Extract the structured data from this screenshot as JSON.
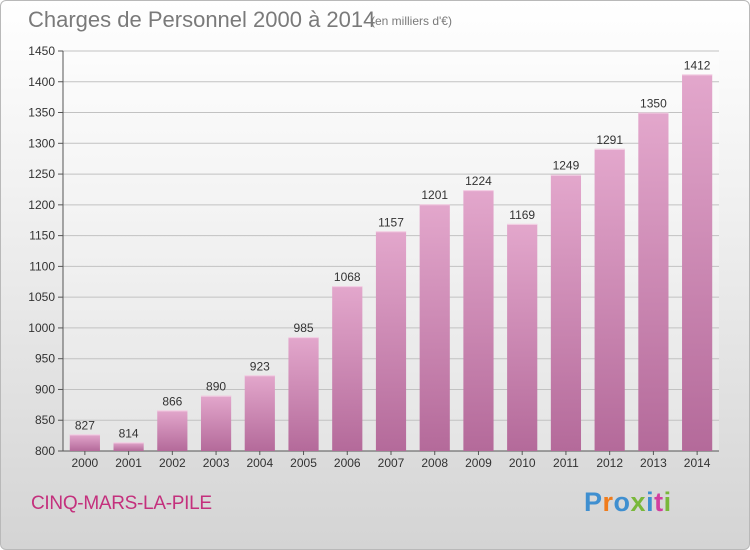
{
  "header": {
    "title": "Charges de Personnel 2000 à 2014",
    "subtitle": "(en milliers d'€)"
  },
  "footer": {
    "commune": "CINQ-MARS-LA-PILE",
    "logo_text": "Proxiti"
  },
  "colors": {
    "bar_light": "#e3a7cc",
    "bar_dark": "#b46a9a",
    "commune_text": "#c4307d",
    "logo_letters": [
      "#3f8fd0",
      "#f07c1c",
      "#3f8fd0",
      "#79b83a",
      "#3f8fd0",
      "#d23ea0",
      "#79b83a"
    ]
  },
  "chart_data": {
    "type": "bar",
    "categories": [
      "2000",
      "2001",
      "2002",
      "2003",
      "2004",
      "2005",
      "2006",
      "2007",
      "2008",
      "2009",
      "2010",
      "2011",
      "2012",
      "2013",
      "2014"
    ],
    "values": [
      827,
      814,
      866,
      890,
      923,
      985,
      1068,
      1157,
      1201,
      1224,
      1169,
      1249,
      1291,
      1350,
      1412
    ],
    "title": "Charges de Personnel 2000 à 2014",
    "subtitle": "(en milliers d'€)",
    "xlabel": "",
    "ylabel": "",
    "ylim": [
      800,
      1450
    ],
    "yticks": [
      800,
      850,
      900,
      950,
      1000,
      1050,
      1100,
      1150,
      1200,
      1250,
      1300,
      1350,
      1400,
      1450
    ],
    "grid": true,
    "data_labels": true
  }
}
